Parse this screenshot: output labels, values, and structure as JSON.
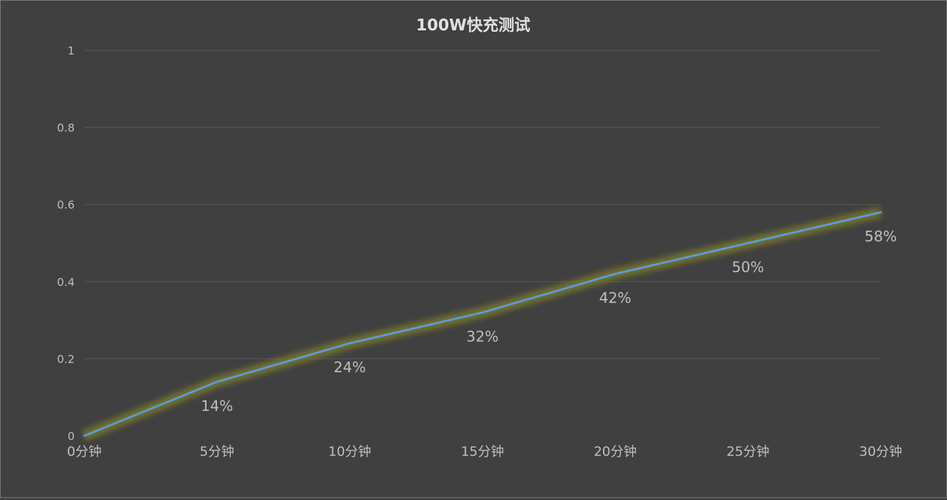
{
  "chart_data": {
    "type": "line",
    "title": "100W快充测试",
    "categories": [
      "0分钟",
      "5分钟",
      "10分钟",
      "15分钟",
      "20分钟",
      "25分钟",
      "30分钟"
    ],
    "values": [
      0,
      0.14,
      0.24,
      0.32,
      0.42,
      0.5,
      0.58
    ],
    "data_labels": [
      "",
      "14%",
      "24%",
      "32%",
      "42%",
      "50%",
      "58%"
    ],
    "y_ticks": [
      "0",
      "0.2",
      "0.4",
      "0.6",
      "0.8",
      "1"
    ],
    "ylim": [
      0,
      1
    ],
    "grid": true,
    "legend": "none",
    "colors": {
      "background": "#404040",
      "line": "#5b9bd5",
      "glow": "#7a7a2a",
      "grid": "#595959",
      "text": "#bfbfbf",
      "title": "#e0e0e0"
    }
  }
}
